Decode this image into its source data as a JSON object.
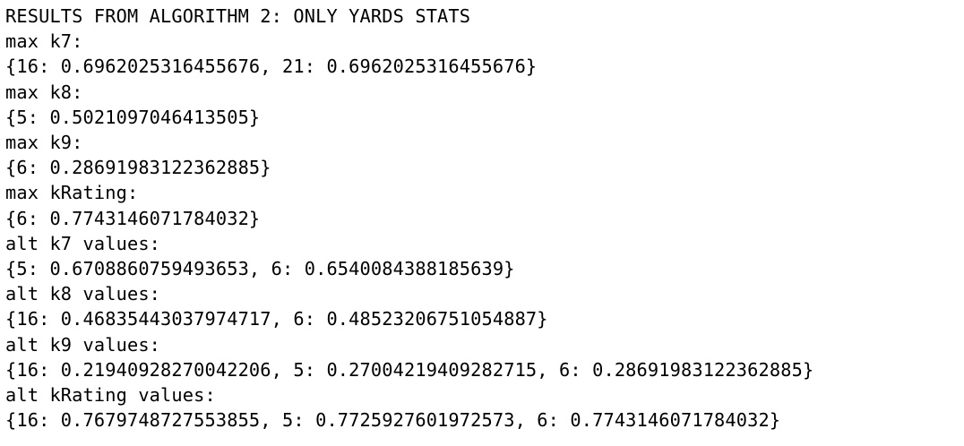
{
  "output": {
    "lines": [
      "RESULTS FROM ALGORITHM 2: ONLY YARDS STATS",
      "max k7:",
      "{16: 0.6962025316455676, 21: 0.6962025316455676}",
      "max k8:",
      "{5: 0.5021097046413505}",
      "max k9:",
      "{6: 0.28691983122362885}",
      "max kRating:",
      "{6: 0.7743146071784032}",
      "alt k7 values:",
      "{5: 0.6708860759493653, 6: 0.6540084388185639}",
      "alt k8 values:",
      "{16: 0.46835443037974717, 6: 0.48523206751054887}",
      "alt k9 values:",
      "{16: 0.21940928270042206, 5: 0.27004219409282715, 6: 0.28691983122362885}",
      "alt kRating values:",
      "{16: 0.7679748727553855, 5: 0.7725927601972573, 6: 0.7743146071784032}"
    ]
  }
}
